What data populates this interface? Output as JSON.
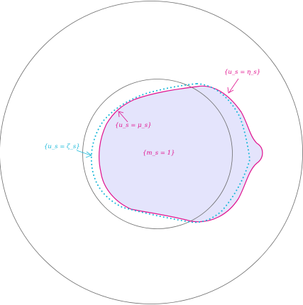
{
  "colors": {
    "outline": "#6b6b6b",
    "magenta": "#e0118e",
    "fill": "#e4e4fc",
    "cyan": "#19b8d9"
  },
  "labels": {
    "eta": "{u_s = η_s}",
    "mu": "{u_s = μ_s}",
    "zeta": "{u_s = ζ_s}",
    "m": "{m_s = 1}"
  }
}
